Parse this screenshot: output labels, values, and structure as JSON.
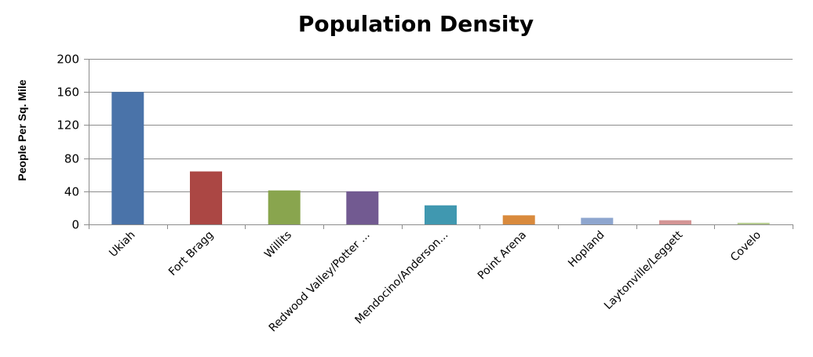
{
  "chart_data": {
    "type": "bar",
    "title": "Population Density",
    "ylabel": "People Per Sq. Mile",
    "xlabel": "",
    "ylim": [
      0,
      200
    ],
    "yticks": [
      0,
      40,
      80,
      120,
      160,
      200
    ],
    "grid": true,
    "legend": "none",
    "categories": [
      "Ukiah",
      "Fort Bragg",
      "Willits",
      "Redwood Valley/Potter ...",
      "Mendocino/Anderson...",
      "Point Arena",
      "Hopland",
      "Laytonville/Leggett",
      "Covelo"
    ],
    "values": [
      160,
      64,
      41,
      40,
      23,
      11,
      8,
      5,
      2
    ],
    "colors": [
      "#4a73a9",
      "#ab4744",
      "#89a54e",
      "#725a91",
      "#4098b0",
      "#d98a3d",
      "#8ea6cf",
      "#d49595",
      "#b7cd92"
    ]
  }
}
